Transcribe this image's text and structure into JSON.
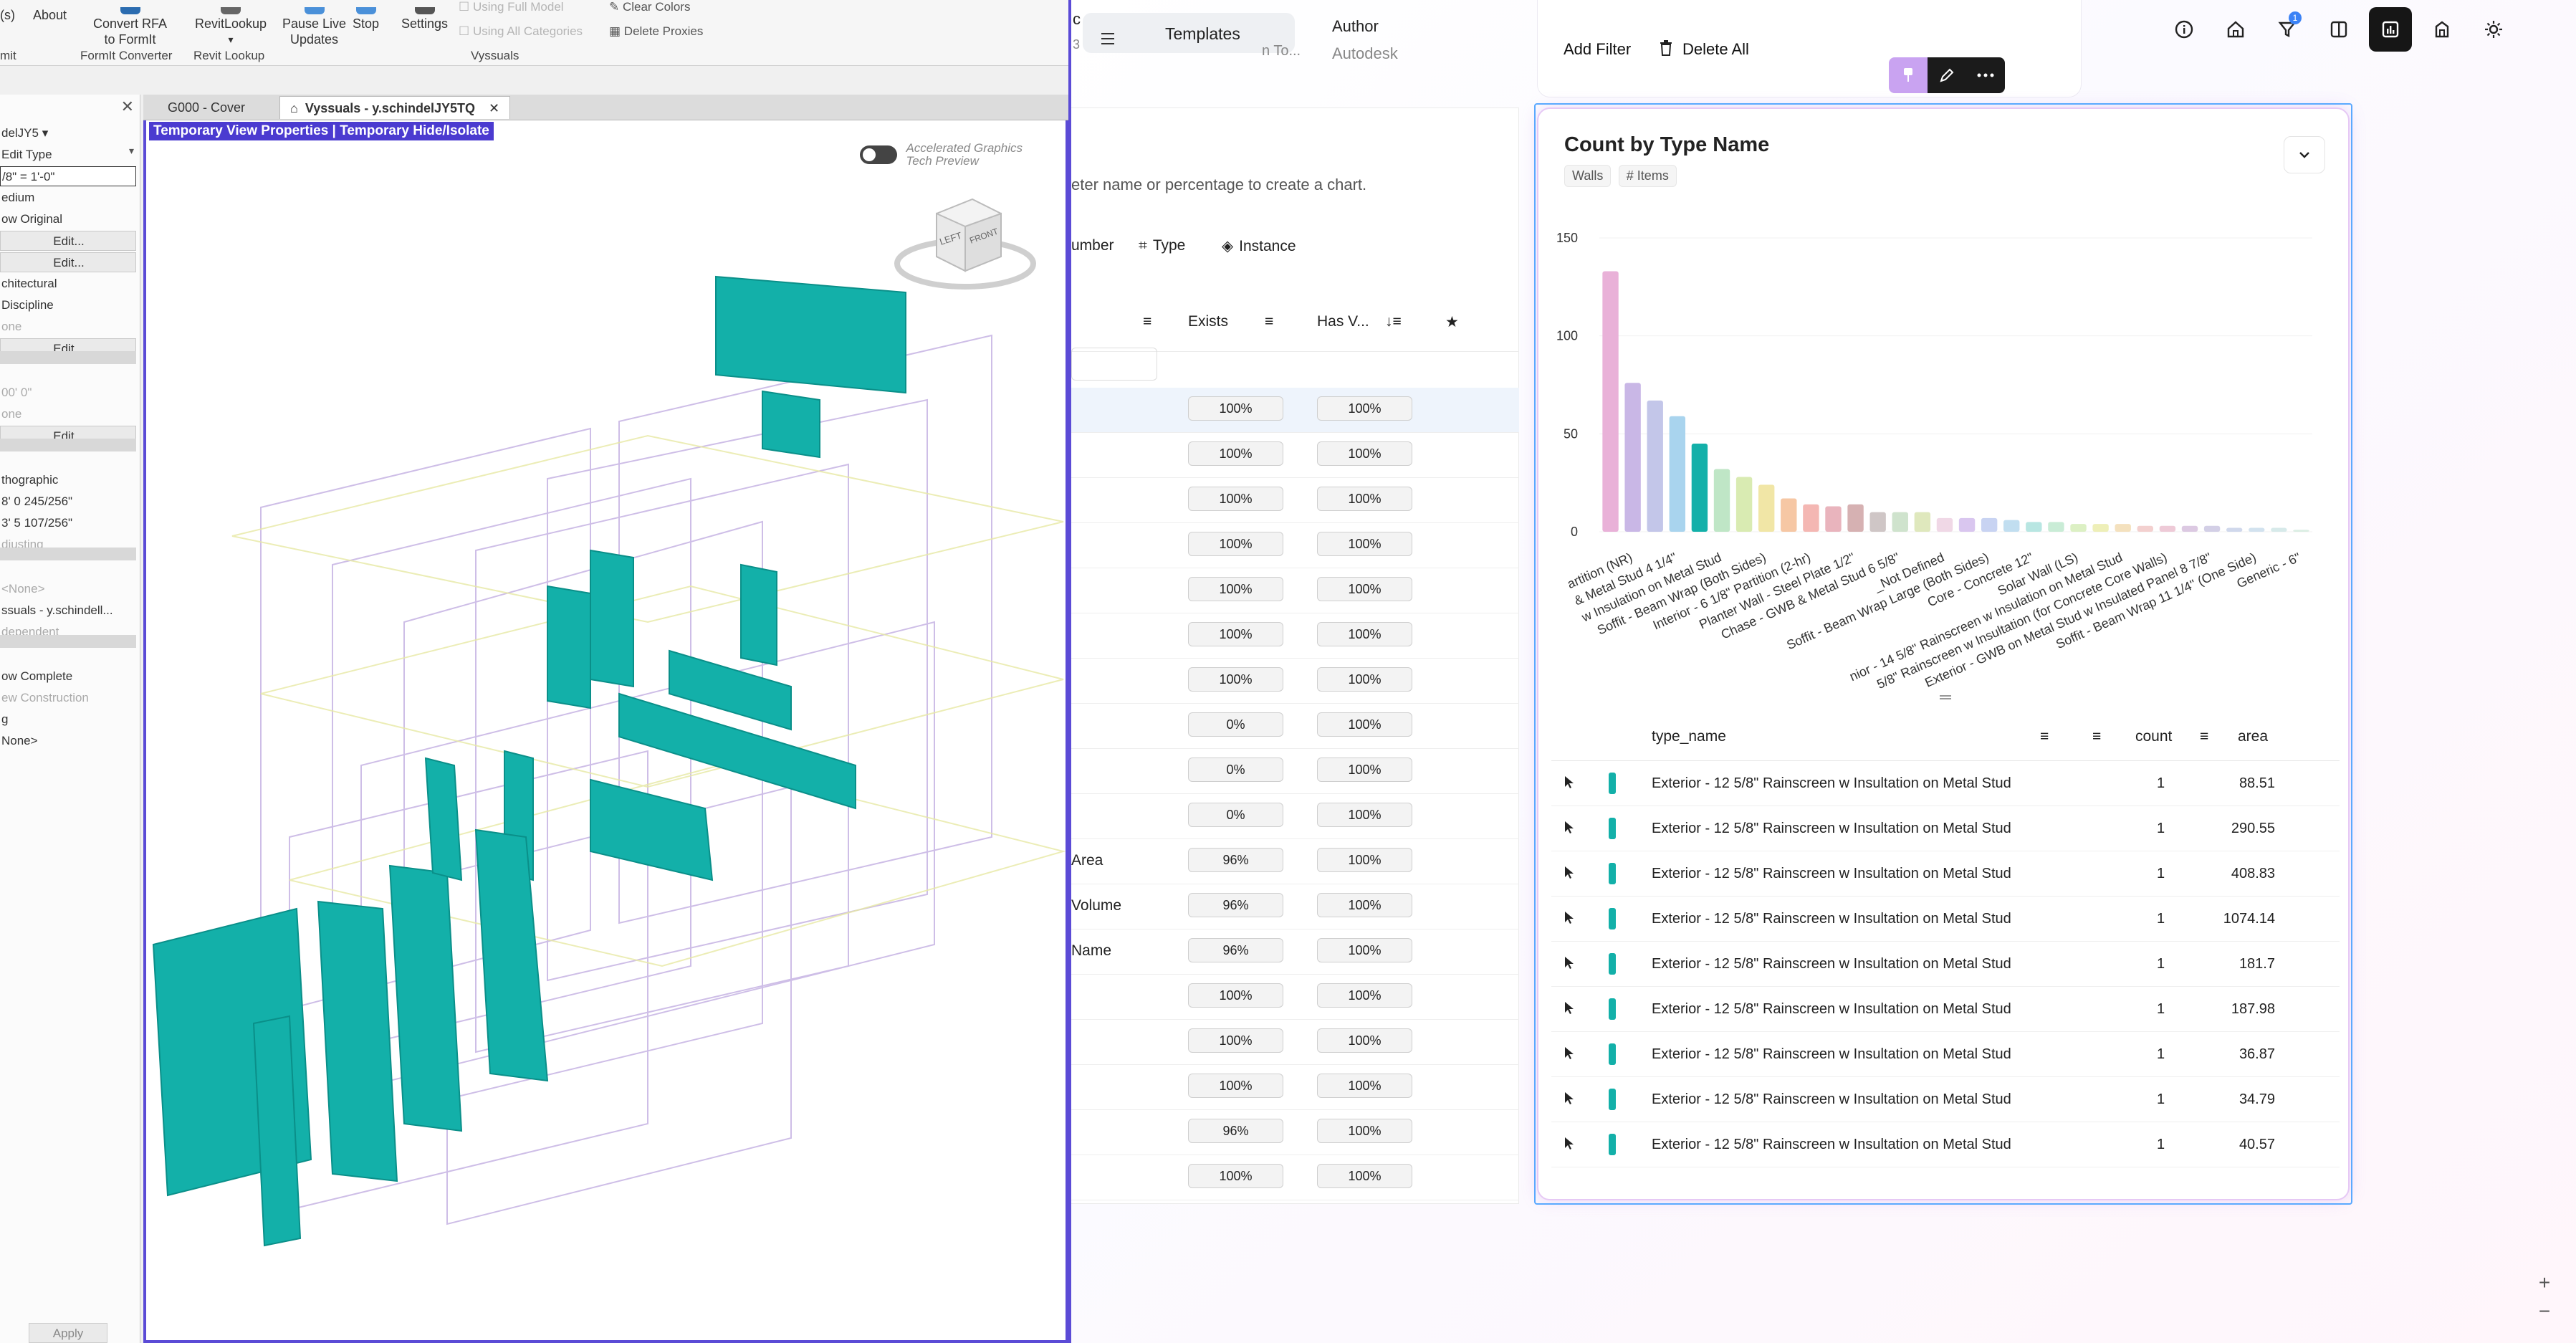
{
  "revit": {
    "ribbon": {
      "buttons": [
        {
          "label": "(s)"
        },
        {
          "label": "About"
        },
        {
          "label": "Convert RFA\nto FormIt"
        },
        {
          "label": "RevitLookup"
        },
        {
          "label": "Pause Live\nUpdates"
        },
        {
          "label": "Stop"
        },
        {
          "label": "Settings"
        }
      ],
      "dim_items": [
        "Using Full Model",
        "Using All Categories"
      ],
      "clear_colors": "Clear Colors",
      "delete_proxies": "Delete Proxies",
      "groups": [
        "mit",
        "FormIt Converter",
        "Revit Lookup",
        "Vyssuals"
      ]
    },
    "properties": [
      {
        "text": "delJY5  ▾",
        "kind": "plain"
      },
      {
        "text": "Edit Type",
        "kind": "plain"
      },
      {
        "text": "/8\" = 1'-0\"",
        "kind": "input"
      },
      {
        "text": "edium",
        "kind": "plain"
      },
      {
        "text": "ow Original",
        "kind": "plain"
      },
      {
        "text": "Edit...",
        "kind": "btn"
      },
      {
        "text": "Edit...",
        "kind": "btn"
      },
      {
        "text": "chitectural",
        "kind": "plain"
      },
      {
        "text": "Discipline",
        "kind": "plain"
      },
      {
        "text": "one",
        "kind": "dim"
      },
      {
        "text": "Edit...",
        "kind": "btn"
      },
      {
        "text": "00' 0\"",
        "kind": "dim"
      },
      {
        "text": "one",
        "kind": "dim"
      },
      {
        "text": "Edit...",
        "kind": "btn"
      },
      {
        "text": "thographic",
        "kind": "plain"
      },
      {
        "text": "8'  0 245/256\"",
        "kind": "plain"
      },
      {
        "text": "3'  5 107/256\"",
        "kind": "plain"
      },
      {
        "text": "djusting",
        "kind": "dim"
      },
      {
        "text": "<None>",
        "kind": "dim"
      },
      {
        "text": "ssuals - y.schindell...",
        "kind": "plain"
      },
      {
        "text": "dependent",
        "kind": "dim"
      },
      {
        "text": "ow Complete",
        "kind": "plain"
      },
      {
        "text": "ew Construction",
        "kind": "dim"
      },
      {
        "text": "g",
        "kind": "plain"
      },
      {
        "text": "None>",
        "kind": "plain"
      }
    ],
    "apply_label": "Apply",
    "tabs": [
      {
        "label": "G000 - Cover",
        "active": false
      },
      {
        "label": "Vyssuals - y.schindelJY5TQ",
        "active": true
      }
    ],
    "temp_banner": "Temporary View Properties | Temporary Hide/Isolate",
    "accel_graphics": "Accelerated Graphics",
    "tech_preview": "Tech Preview",
    "viewcube": {
      "left": "LEFT",
      "front": "FRONT"
    }
  },
  "app": {
    "templates_label": "Templates",
    "templates_subtext": "n To...",
    "templates_prefix": "c",
    "templates_num": "3",
    "author_label": "Author",
    "author_value": "Autodesk",
    "add_filter_label": "Add Filter",
    "delete_all_label": "Delete All",
    "filter_badge_count": "1",
    "chart_hint": "eter name or percentage to create a chart.",
    "group_tabs": [
      "umber",
      "Type",
      "Instance"
    ],
    "columns": {
      "exists": "Exists",
      "has_value": "Has V..."
    },
    "rows": [
      {
        "name": "",
        "exists": "100%",
        "has": "100%",
        "selected": true
      },
      {
        "name": "",
        "exists": "100%",
        "has": "100%"
      },
      {
        "name": "",
        "exists": "100%",
        "has": "100%"
      },
      {
        "name": "",
        "exists": "100%",
        "has": "100%"
      },
      {
        "name": "",
        "exists": "100%",
        "has": "100%"
      },
      {
        "name": "",
        "exists": "100%",
        "has": "100%"
      },
      {
        "name": "",
        "exists": "100%",
        "has": "100%"
      },
      {
        "name": "",
        "exists": "0%",
        "has": "100%"
      },
      {
        "name": "",
        "exists": "0%",
        "has": "100%"
      },
      {
        "name": "",
        "exists": "0%",
        "has": "100%"
      },
      {
        "name": "Area",
        "exists": "96%",
        "has": "100%"
      },
      {
        "name": "Volume",
        "exists": "96%",
        "has": "100%"
      },
      {
        "name": "Name",
        "exists": "96%",
        "has": "100%"
      },
      {
        "name": "",
        "exists": "100%",
        "has": "100%"
      },
      {
        "name": "",
        "exists": "100%",
        "has": "100%"
      },
      {
        "name": "",
        "exists": "100%",
        "has": "100%"
      },
      {
        "name": "",
        "exists": "96%",
        "has": "100%"
      },
      {
        "name": "",
        "exists": "100%",
        "has": "100%"
      }
    ],
    "chart_card": {
      "title": "Count by Type Name",
      "tags": [
        "Walls",
        "# Items"
      ]
    },
    "table": {
      "columns": [
        "type_name",
        "count",
        "area"
      ],
      "rows": [
        {
          "type_name": "Exterior - 12 5/8\" Rainscreen w Insultation on Metal Stud",
          "count": "1",
          "area": "88.51"
        },
        {
          "type_name": "Exterior - 12 5/8\" Rainscreen w Insultation on Metal Stud",
          "count": "1",
          "area": "290.55"
        },
        {
          "type_name": "Exterior - 12 5/8\" Rainscreen w Insultation on Metal Stud",
          "count": "1",
          "area": "408.83"
        },
        {
          "type_name": "Exterior - 12 5/8\" Rainscreen w Insultation on Metal Stud",
          "count": "1",
          "area": "1074.14"
        },
        {
          "type_name": "Exterior - 12 5/8\" Rainscreen w Insultation on Metal Stud",
          "count": "1",
          "area": "181.7"
        },
        {
          "type_name": "Exterior - 12 5/8\" Rainscreen w Insultation on Metal Stud",
          "count": "1",
          "area": "187.98"
        },
        {
          "type_name": "Exterior - 12 5/8\" Rainscreen w Insultation on Metal Stud",
          "count": "1",
          "area": "36.87"
        },
        {
          "type_name": "Exterior - 12 5/8\" Rainscreen w Insultation on Metal Stud",
          "count": "1",
          "area": "34.79"
        },
        {
          "type_name": "Exterior - 12 5/8\" Rainscreen w Insultation on Metal Stud",
          "count": "1",
          "area": "40.57"
        }
      ]
    },
    "colors": {
      "accent": "#13b0a9",
      "card_border": "#e6c9f5",
      "selection": "#5aa9ff",
      "revit_frame": "#5b4bd6"
    }
  },
  "chart_data": {
    "type": "bar",
    "title": "Count by Type Name",
    "xlabel": "",
    "ylabel": "",
    "ylim": [
      0,
      150
    ],
    "yticks": [
      0,
      50,
      100,
      150
    ],
    "highlighted_index": 4,
    "x_labels": [
      "artition (NR)",
      "& Metal Stud 4 1/4\"",
      "w Insulation on Metal Stud",
      "Soffit - Beam Wrap (Both Sides)",
      "Interior - 6 1/8\" Partition (2-hr)",
      "Planter Wall - Steel Plate 1/2\"",
      "Chase - GWB & Metal Stud 6 5/8\"",
      "_Not Defined",
      "Soffit - Beam Wrap Large (Both Sides)",
      "Core - Concrete 12\"",
      "Solar Wall (LS)",
      "nior - 14 5/8\" Rainscreen w Insulation on Metal Stud",
      "5/8\" Rainscreen w Insultation (for Concrete Core Walls)",
      "Exterior - GWB on Metal Stud w Insulated Panel 8 7/8\"",
      "Soffit - Beam Wrap 11 1/4\" (One Side)",
      "Generic - 6\""
    ],
    "values": [
      133,
      76,
      67,
      59,
      45,
      32,
      28,
      24,
      17,
      14,
      13,
      14,
      10,
      10,
      10,
      7,
      7,
      7,
      6,
      5,
      5,
      4,
      4,
      4,
      3,
      3,
      3,
      3,
      2,
      2,
      2,
      1
    ],
    "colors": [
      "#e9b1d8",
      "#c9b7e6",
      "#c3c6e9",
      "#a9d4ee",
      "#13b0a9",
      "#bfe6c6",
      "#d9ebb2",
      "#f1e6a6",
      "#f6c7a4",
      "#f4b7b3",
      "#e9b4bd",
      "#d6b1b2",
      "#cfc6c6",
      "#cfe3cd",
      "#dfe8bd",
      "#f0d8e6",
      "#d9c6ef",
      "#c8d3f2",
      "#c1def0",
      "#b8e6e2",
      "#c9ecd6",
      "#dcf0c4",
      "#eeefb8",
      "#f4e1be",
      "#f3d0cf",
      "#eecad7",
      "#dcc9e2",
      "#d3cfe6",
      "#d0d8ec",
      "#d2e2ef",
      "#d7eaea",
      "#dbeee3"
    ]
  }
}
